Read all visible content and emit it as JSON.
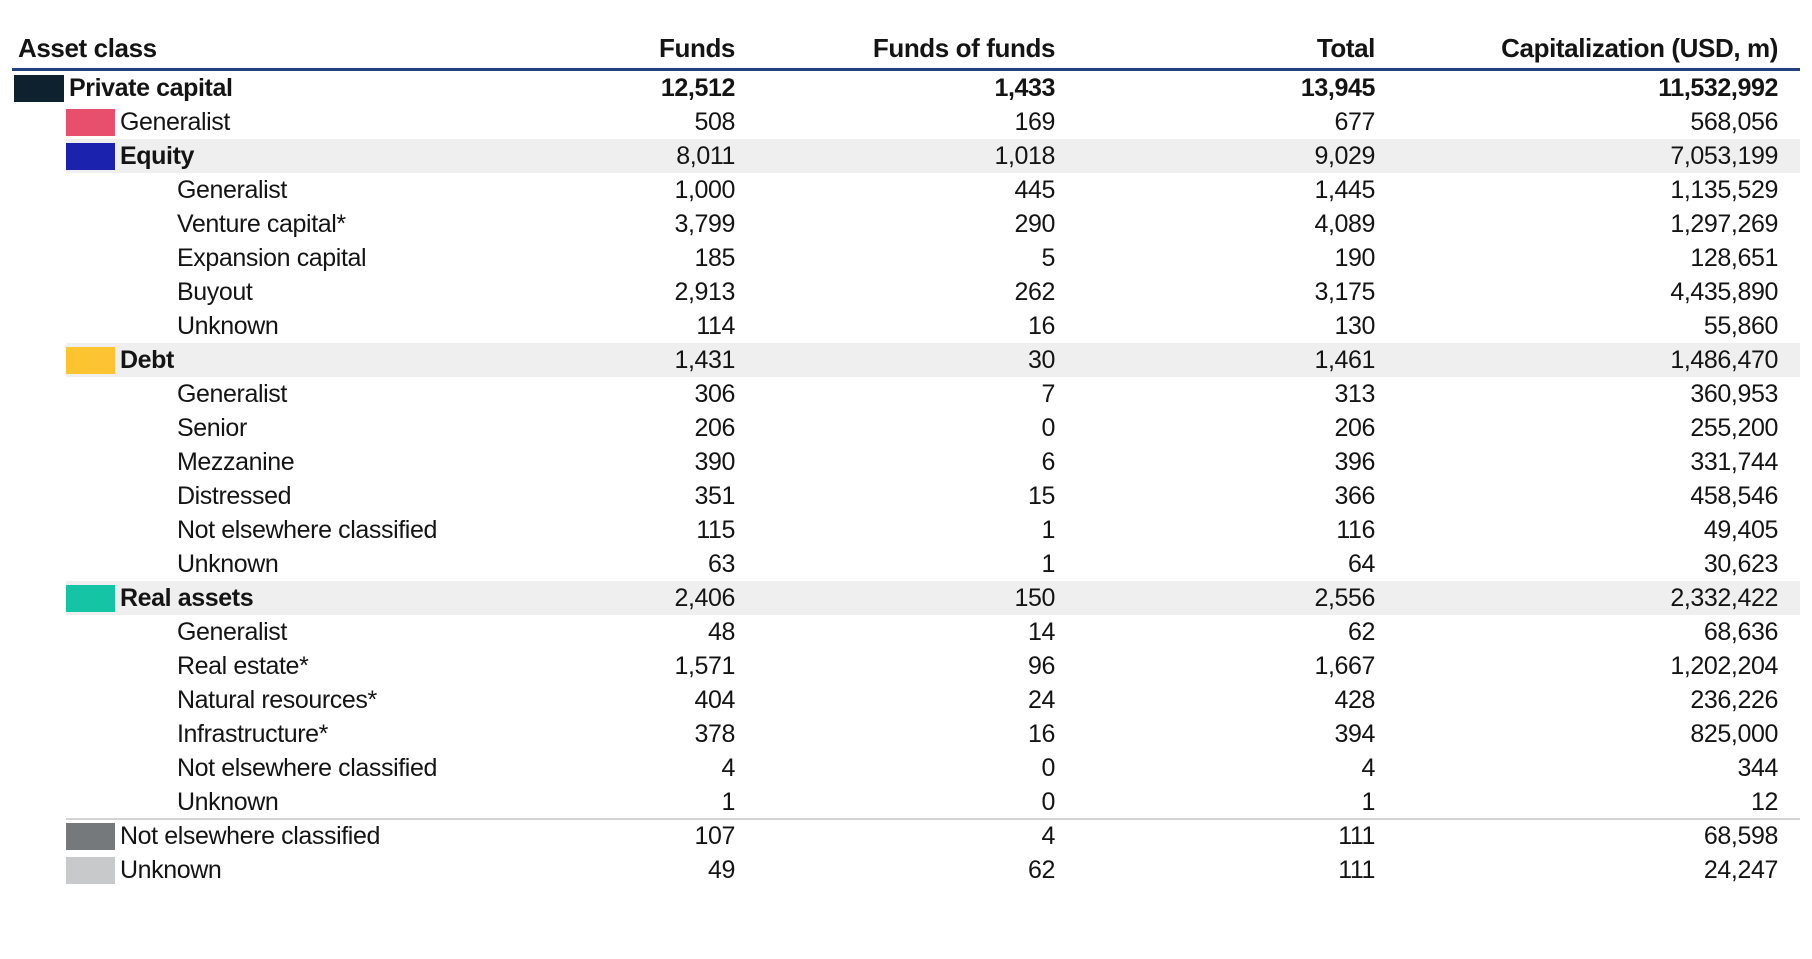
{
  "colors": {
    "header_rule": "#24417e",
    "band_background": "#efefef",
    "separator": "#d4d4d4",
    "text": "#141414",
    "swatch_private_capital": "#0e212e",
    "swatch_generalist_top": "#e74f6d",
    "swatch_equity": "#1b23ae",
    "swatch_debt": "#fcc430",
    "swatch_real_assets": "#15c3a5",
    "swatch_not_elsewhere_classified": "#75797c",
    "swatch_unknown": "#c7c9ca"
  },
  "table": {
    "columns": [
      "Asset class",
      "Funds",
      "Funds of funds",
      "Total",
      "Capitalization (USD, m)"
    ],
    "rows": [
      {
        "label": "Private capital",
        "level": 1,
        "bold": "row",
        "swatch": "#0e212e",
        "band": false,
        "values": [
          "12,512",
          "1,433",
          "13,945",
          "11,532,992"
        ]
      },
      {
        "label": "Generalist",
        "level": 2,
        "bold": "none",
        "swatch": "#e74f6d",
        "band": false,
        "values": [
          "508",
          "169",
          "677",
          "568,056"
        ]
      },
      {
        "label": "Equity",
        "level": 2,
        "bold": "label",
        "swatch": "#1b23ae",
        "band": true,
        "values": [
          "8,011",
          "1,018",
          "9,029",
          "7,053,199"
        ]
      },
      {
        "label": "Generalist",
        "level": 3,
        "bold": "none",
        "band": false,
        "values": [
          "1,000",
          "445",
          "1,445",
          "1,135,529"
        ]
      },
      {
        "label": "Venture capital*",
        "level": 3,
        "bold": "none",
        "band": false,
        "values": [
          "3,799",
          "290",
          "4,089",
          "1,297,269"
        ]
      },
      {
        "label": "Expansion capital",
        "level": 3,
        "bold": "none",
        "band": false,
        "values": [
          "185",
          "5",
          "190",
          "128,651"
        ]
      },
      {
        "label": "Buyout",
        "level": 3,
        "bold": "none",
        "band": false,
        "values": [
          "2,913",
          "262",
          "3,175",
          "4,435,890"
        ]
      },
      {
        "label": "Unknown",
        "level": 3,
        "bold": "none",
        "band": false,
        "values": [
          "114",
          "16",
          "130",
          "55,860"
        ]
      },
      {
        "label": "Debt",
        "level": 2,
        "bold": "label",
        "swatch": "#fcc430",
        "band": true,
        "values": [
          "1,431",
          "30",
          "1,461",
          "1,486,470"
        ]
      },
      {
        "label": "Generalist",
        "level": 3,
        "bold": "none",
        "band": false,
        "values": [
          "306",
          "7",
          "313",
          "360,953"
        ]
      },
      {
        "label": "Senior",
        "level": 3,
        "bold": "none",
        "band": false,
        "values": [
          "206",
          "0",
          "206",
          "255,200"
        ]
      },
      {
        "label": "Mezzanine",
        "level": 3,
        "bold": "none",
        "band": false,
        "values": [
          "390",
          "6",
          "396",
          "331,744"
        ]
      },
      {
        "label": "Distressed",
        "level": 3,
        "bold": "none",
        "band": false,
        "values": [
          "351",
          "15",
          "366",
          "458,546"
        ]
      },
      {
        "label": "Not elsewhere classified",
        "level": 3,
        "bold": "none",
        "band": false,
        "values": [
          "115",
          "1",
          "116",
          "49,405"
        ]
      },
      {
        "label": "Unknown",
        "level": 3,
        "bold": "none",
        "band": false,
        "values": [
          "63",
          "1",
          "64",
          "30,623"
        ]
      },
      {
        "label": "Real assets",
        "level": 2,
        "bold": "label",
        "swatch": "#15c3a5",
        "band": true,
        "values": [
          "2,406",
          "150",
          "2,556",
          "2,332,422"
        ]
      },
      {
        "label": "Generalist",
        "level": 3,
        "bold": "none",
        "band": false,
        "values": [
          "48",
          "14",
          "62",
          "68,636"
        ]
      },
      {
        "label": "Real estate*",
        "level": 3,
        "bold": "none",
        "band": false,
        "values": [
          "1,571",
          "96",
          "1,667",
          "1,202,204"
        ]
      },
      {
        "label": "Natural resources*",
        "level": 3,
        "bold": "none",
        "band": false,
        "values": [
          "404",
          "24",
          "428",
          "236,226"
        ]
      },
      {
        "label": "Infrastructure*",
        "level": 3,
        "bold": "none",
        "band": false,
        "values": [
          "378",
          "16",
          "394",
          "825,000"
        ]
      },
      {
        "label": "Not elsewhere classified",
        "level": 3,
        "bold": "none",
        "band": false,
        "values": [
          "4",
          "0",
          "4",
          "344"
        ]
      },
      {
        "label": "Unknown",
        "level": 3,
        "bold": "none",
        "band": false,
        "values": [
          "1",
          "0",
          "1",
          "12"
        ]
      },
      {
        "label": "Not elsewhere classified",
        "level": 2,
        "bold": "none",
        "swatch": "#75797c",
        "band": false,
        "separator_above": true,
        "values": [
          "107",
          "4",
          "111",
          "68,598"
        ]
      },
      {
        "label": "Unknown",
        "level": 2,
        "bold": "none",
        "swatch": "#c7c9ca",
        "band": false,
        "values": [
          "49",
          "62",
          "111",
          "24,247"
        ]
      }
    ]
  },
  "chart_data": {
    "type": "table",
    "title": "",
    "columns": [
      "Asset class",
      "Funds",
      "Funds of funds",
      "Total",
      "Capitalization (USD, m)"
    ],
    "rows": [
      {
        "asset_class": "Private capital",
        "parent": null,
        "funds": 12512,
        "funds_of_funds": 1433,
        "total": 13945,
        "capitalization_usd_m": 11532992
      },
      {
        "asset_class": "Generalist",
        "parent": "Private capital",
        "funds": 508,
        "funds_of_funds": 169,
        "total": 677,
        "capitalization_usd_m": 568056
      },
      {
        "asset_class": "Equity",
        "parent": "Private capital",
        "funds": 8011,
        "funds_of_funds": 1018,
        "total": 9029,
        "capitalization_usd_m": 7053199
      },
      {
        "asset_class": "Generalist",
        "parent": "Equity",
        "funds": 1000,
        "funds_of_funds": 445,
        "total": 1445,
        "capitalization_usd_m": 1135529
      },
      {
        "asset_class": "Venture capital*",
        "parent": "Equity",
        "funds": 3799,
        "funds_of_funds": 290,
        "total": 4089,
        "capitalization_usd_m": 1297269
      },
      {
        "asset_class": "Expansion capital",
        "parent": "Equity",
        "funds": 185,
        "funds_of_funds": 5,
        "total": 190,
        "capitalization_usd_m": 128651
      },
      {
        "asset_class": "Buyout",
        "parent": "Equity",
        "funds": 2913,
        "funds_of_funds": 262,
        "total": 3175,
        "capitalization_usd_m": 4435890
      },
      {
        "asset_class": "Unknown",
        "parent": "Equity",
        "funds": 114,
        "funds_of_funds": 16,
        "total": 130,
        "capitalization_usd_m": 55860
      },
      {
        "asset_class": "Debt",
        "parent": "Private capital",
        "funds": 1431,
        "funds_of_funds": 30,
        "total": 1461,
        "capitalization_usd_m": 1486470
      },
      {
        "asset_class": "Generalist",
        "parent": "Debt",
        "funds": 306,
        "funds_of_funds": 7,
        "total": 313,
        "capitalization_usd_m": 360953
      },
      {
        "asset_class": "Senior",
        "parent": "Debt",
        "funds": 206,
        "funds_of_funds": 0,
        "total": 206,
        "capitalization_usd_m": 255200
      },
      {
        "asset_class": "Mezzanine",
        "parent": "Debt",
        "funds": 390,
        "funds_of_funds": 6,
        "total": 396,
        "capitalization_usd_m": 331744
      },
      {
        "asset_class": "Distressed",
        "parent": "Debt",
        "funds": 351,
        "funds_of_funds": 15,
        "total": 366,
        "capitalization_usd_m": 458546
      },
      {
        "asset_class": "Not elsewhere classified",
        "parent": "Debt",
        "funds": 115,
        "funds_of_funds": 1,
        "total": 116,
        "capitalization_usd_m": 49405
      },
      {
        "asset_class": "Unknown",
        "parent": "Debt",
        "funds": 63,
        "funds_of_funds": 1,
        "total": 64,
        "capitalization_usd_m": 30623
      },
      {
        "asset_class": "Real assets",
        "parent": "Private capital",
        "funds": 2406,
        "funds_of_funds": 150,
        "total": 2556,
        "capitalization_usd_m": 2332422
      },
      {
        "asset_class": "Generalist",
        "parent": "Real assets",
        "funds": 48,
        "funds_of_funds": 14,
        "total": 62,
        "capitalization_usd_m": 68636
      },
      {
        "asset_class": "Real estate*",
        "parent": "Real assets",
        "funds": 1571,
        "funds_of_funds": 96,
        "total": 1667,
        "capitalization_usd_m": 1202204
      },
      {
        "asset_class": "Natural resources*",
        "parent": "Real assets",
        "funds": 404,
        "funds_of_funds": 24,
        "total": 428,
        "capitalization_usd_m": 236226
      },
      {
        "asset_class": "Infrastructure*",
        "parent": "Real assets",
        "funds": 378,
        "funds_of_funds": 16,
        "total": 394,
        "capitalization_usd_m": 825000
      },
      {
        "asset_class": "Not elsewhere classified",
        "parent": "Real assets",
        "funds": 4,
        "funds_of_funds": 0,
        "total": 4,
        "capitalization_usd_m": 344
      },
      {
        "asset_class": "Unknown",
        "parent": "Real assets",
        "funds": 1,
        "funds_of_funds": 0,
        "total": 1,
        "capitalization_usd_m": 12
      },
      {
        "asset_class": "Not elsewhere classified",
        "parent": null,
        "funds": 107,
        "funds_of_funds": 4,
        "total": 111,
        "capitalization_usd_m": 68598
      },
      {
        "asset_class": "Unknown",
        "parent": null,
        "funds": 49,
        "funds_of_funds": 62,
        "total": 111,
        "capitalization_usd_m": 24247
      }
    ]
  }
}
